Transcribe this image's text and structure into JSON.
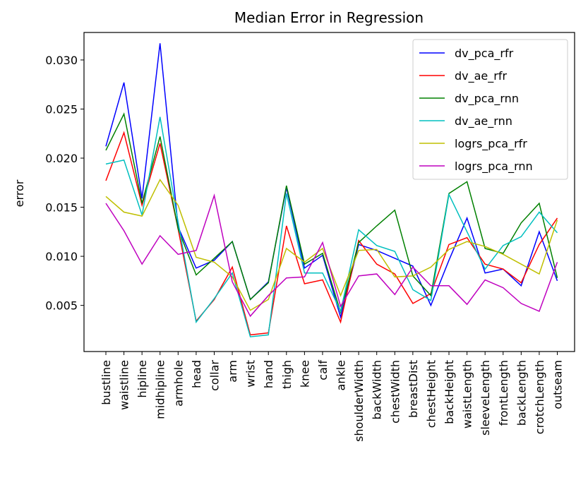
{
  "chart_data": {
    "type": "line",
    "title": "Median Error in Regression",
    "xlabel": "",
    "ylabel": "error",
    "ylim": [
      0.0003,
      0.0328
    ],
    "yticks": [
      "0.005",
      "0.010",
      "0.015",
      "0.020",
      "0.025",
      "0.030"
    ],
    "ytick_values": [
      0.005,
      0.01,
      0.015,
      0.02,
      0.025,
      0.03
    ],
    "legend_position": "top-right",
    "grid": false,
    "categories": [
      "bustline",
      "waistline",
      "hipline",
      "midhipline",
      "armhole",
      "head",
      "collar",
      "arm",
      "wrist",
      "hand",
      "thigh",
      "knee",
      "calf",
      "ankle",
      "shoulderWidth",
      "backWidth",
      "chestWidth",
      "breastDist",
      "chestHeight",
      "backHeight",
      "waistLength",
      "sleeveLength",
      "frontLength",
      "backLength",
      "crotchLength",
      "outseam"
    ],
    "series": [
      {
        "name": "dv_pca_rfr",
        "color": "#0000ff",
        "values": [
          0.0212,
          0.0277,
          0.0159,
          0.0317,
          0.013,
          0.0088,
          0.0096,
          0.0115,
          0.0056,
          0.0074,
          0.017,
          0.0088,
          0.0101,
          0.0038,
          0.0112,
          0.0106,
          0.0098,
          0.009,
          0.005,
          0.0096,
          0.0139,
          0.0083,
          0.0087,
          0.007,
          0.0125,
          0.0075
        ]
      },
      {
        "name": "dv_ae_rfr",
        "color": "#ff0000",
        "values": [
          0.0177,
          0.0226,
          0.0152,
          0.0215,
          0.0128,
          0.0034,
          0.0056,
          0.0089,
          0.002,
          0.0022,
          0.0131,
          0.0072,
          0.0076,
          0.0033,
          0.0116,
          0.0092,
          0.0082,
          0.0052,
          0.0062,
          0.0112,
          0.0119,
          0.0092,
          0.0087,
          0.0073,
          0.0112,
          0.0139
        ]
      },
      {
        "name": "dv_pca_rnn",
        "color": "#008000",
        "values": [
          0.0208,
          0.0245,
          0.0154,
          0.0222,
          0.0128,
          0.0081,
          0.0098,
          0.0115,
          0.0056,
          0.0073,
          0.0172,
          0.0092,
          0.0103,
          0.0043,
          0.0114,
          0.0131,
          0.0147,
          0.008,
          0.006,
          0.0164,
          0.0176,
          0.0108,
          0.0103,
          0.0134,
          0.0154,
          0.0078
        ]
      },
      {
        "name": "dv_ae_rnn",
        "color": "#00bfbf",
        "values": [
          0.0194,
          0.0198,
          0.0142,
          0.0242,
          0.0135,
          0.0033,
          0.0057,
          0.0083,
          0.0018,
          0.002,
          0.0164,
          0.0083,
          0.0083,
          0.0044,
          0.0127,
          0.0111,
          0.0105,
          0.0066,
          0.0055,
          0.0163,
          0.0125,
          0.0087,
          0.0111,
          0.012,
          0.0145,
          0.0124
        ]
      },
      {
        "name": "logrs_pca_rfr",
        "color": "#bfbf00",
        "values": [
          0.0161,
          0.0145,
          0.0141,
          0.0178,
          0.0152,
          0.0099,
          0.0094,
          0.0079,
          0.0045,
          0.0056,
          0.0108,
          0.0094,
          0.0108,
          0.006,
          0.0106,
          0.0107,
          0.0079,
          0.008,
          0.0089,
          0.0107,
          0.0115,
          0.011,
          0.0102,
          0.0092,
          0.0082,
          0.0137
        ]
      },
      {
        "name": "logrs_pca_rnn",
        "color": "#bf00bf",
        "values": [
          0.0154,
          0.0126,
          0.0092,
          0.0121,
          0.0102,
          0.0106,
          0.0162,
          0.0074,
          0.0039,
          0.006,
          0.0078,
          0.0079,
          0.0114,
          0.0049,
          0.008,
          0.0082,
          0.0061,
          0.0089,
          0.007,
          0.007,
          0.0051,
          0.0076,
          0.0068,
          0.0052,
          0.0044,
          0.0094
        ]
      }
    ]
  }
}
